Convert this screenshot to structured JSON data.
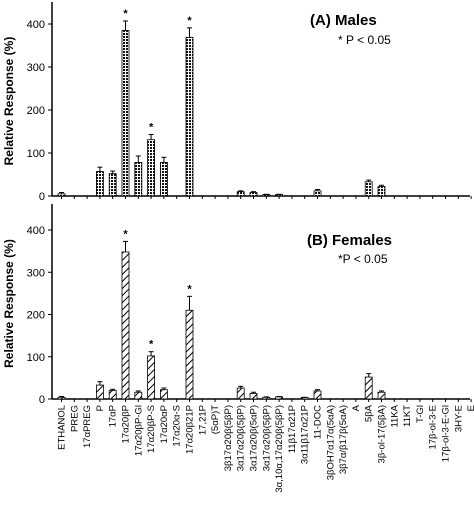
{
  "chart_data": [
    {
      "type": "bar",
      "title": "(A) Males",
      "annotation": "* P < 0.05",
      "ylabel": "Relative Response (%)",
      "ylim": [
        0,
        400
      ],
      "yticks": [
        0,
        100,
        200,
        300,
        400
      ],
      "grid": false,
      "bar_pattern": "dotted",
      "categories": [
        "ETHANOL",
        "PREG",
        "17αPREG",
        "P",
        "17αP",
        "17α20βP",
        "17α20βP-Gl",
        "17α20βP-S",
        "17α20αP",
        "17α20α-S",
        "17α20β21P",
        "17,21P",
        "(5αP)T",
        "3β17α20β(5βP)",
        "3α17α20β(5βP)",
        "3α17α20β(5αP)",
        "3α17α20β(5βP)",
        "3α,10α,17α20β(5βP)",
        "11β17α21P",
        "3α11β17α21P",
        "11-DOC",
        "3βOH7α17α(5αA)",
        "3β7α/β17β(5αA)",
        "A",
        "5βA",
        "3β-ol-17(5βA)",
        "11KA",
        "11KT",
        "T-Gl",
        "17β-ol-3-E",
        "17β-ol-3-E-Gl",
        "3HY-E",
        "E"
      ],
      "values": [
        5,
        null,
        null,
        57,
        52,
        385,
        78,
        131,
        78,
        null,
        369,
        null,
        null,
        null,
        10,
        8,
        3,
        3,
        null,
        null,
        12,
        null,
        null,
        null,
        33,
        22,
        null,
        null,
        null,
        null,
        null,
        null,
        null
      ],
      "errors": [
        3,
        null,
        null,
        10,
        6,
        22,
        15,
        12,
        12,
        null,
        22,
        null,
        null,
        null,
        2,
        2,
        1,
        1,
        null,
        null,
        3,
        null,
        null,
        null,
        4,
        3,
        null,
        null,
        null,
        null,
        null,
        null,
        null
      ],
      "significant": [
        "17α20βP",
        "17α20βP-S",
        "17α20β21P"
      ]
    },
    {
      "type": "bar",
      "title": "(B) Females",
      "annotation": "*P < 0.05",
      "ylabel": "Relative Response (%)",
      "ylim": [
        0,
        400
      ],
      "yticks": [
        0,
        100,
        200,
        300,
        400
      ],
      "grid": false,
      "bar_pattern": "hatched",
      "categories": [
        "ETHANOL",
        "PREG",
        "17αPREG",
        "P",
        "17αP",
        "17α20βP",
        "17α20βP-Gl",
        "17α20βP-S",
        "17α20αP",
        "17α20α-S",
        "17α20β21P",
        "17,21P",
        "(5αP)T",
        "3β17α20β(5βP)",
        "3α17α20β(5βP)",
        "3α17α20β(5αP)",
        "3α17α20β(5βP)",
        "3α,10α,17α20β(5βP)",
        "11β17α21P",
        "3α11β17α21P",
        "11-DOC",
        "3βOH7α17α(5αA)",
        "3β7α/β17β(5αA)",
        "A",
        "5βA",
        "3β-ol-17(5βA)",
        "11KA",
        "11KT",
        "T-Gl",
        "17β-ol-3-E",
        "17β-ol-3-E-Gl",
        "3HY-E",
        "E"
      ],
      "values": [
        4,
        null,
        null,
        33,
        20,
        348,
        16,
        102,
        22,
        null,
        210,
        null,
        null,
        null,
        26,
        13,
        4,
        5,
        null,
        3,
        19,
        null,
        null,
        null,
        52,
        16,
        null,
        null,
        null,
        null,
        null,
        null,
        null
      ],
      "errors": [
        2,
        null,
        null,
        8,
        3,
        25,
        3,
        10,
        4,
        null,
        33,
        null,
        null,
        null,
        4,
        3,
        1,
        1,
        null,
        1,
        3,
        null,
        null,
        null,
        8,
        3,
        null,
        null,
        null,
        null,
        null,
        null,
        null
      ],
      "significant": [
        "17α20βP",
        "17α20βP-S",
        "17α20β21P"
      ]
    }
  ]
}
